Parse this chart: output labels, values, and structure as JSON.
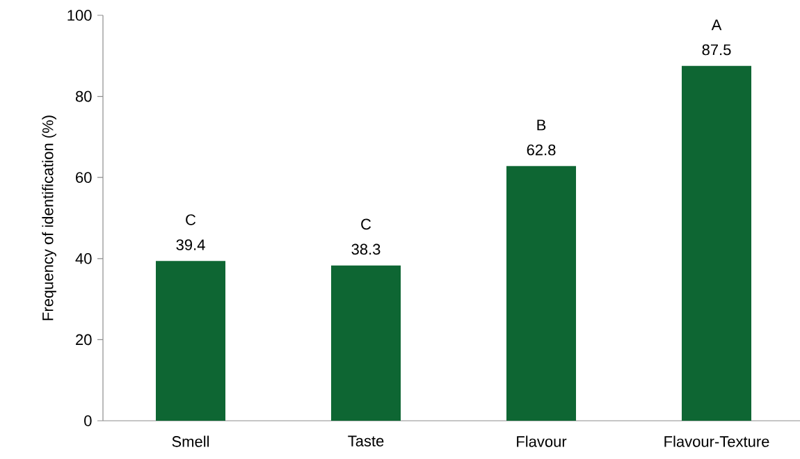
{
  "chart_data": {
    "type": "bar",
    "ylabel": "Frequency of identification (%)",
    "categories": [
      "Smell",
      "Taste",
      "Flavour",
      "Flavour-Texture"
    ],
    "values": [
      39.4,
      38.3,
      62.8,
      87.5
    ],
    "color": "#0e6633",
    "ylim": [
      0,
      100
    ],
    "yticks": [
      0,
      20,
      40,
      60,
      80,
      100
    ],
    "grid": false,
    "data_labels": true,
    "annotations": [
      {
        "text": "C",
        "x": "Smell",
        "y": 39.4
      },
      {
        "text": "C",
        "x": "Taste",
        "y": 38.3
      },
      {
        "text": "B",
        "x": "Flavour",
        "y": 62.8
      },
      {
        "text": "A",
        "x": "Flavour-Texture",
        "y": 87.5
      }
    ]
  }
}
